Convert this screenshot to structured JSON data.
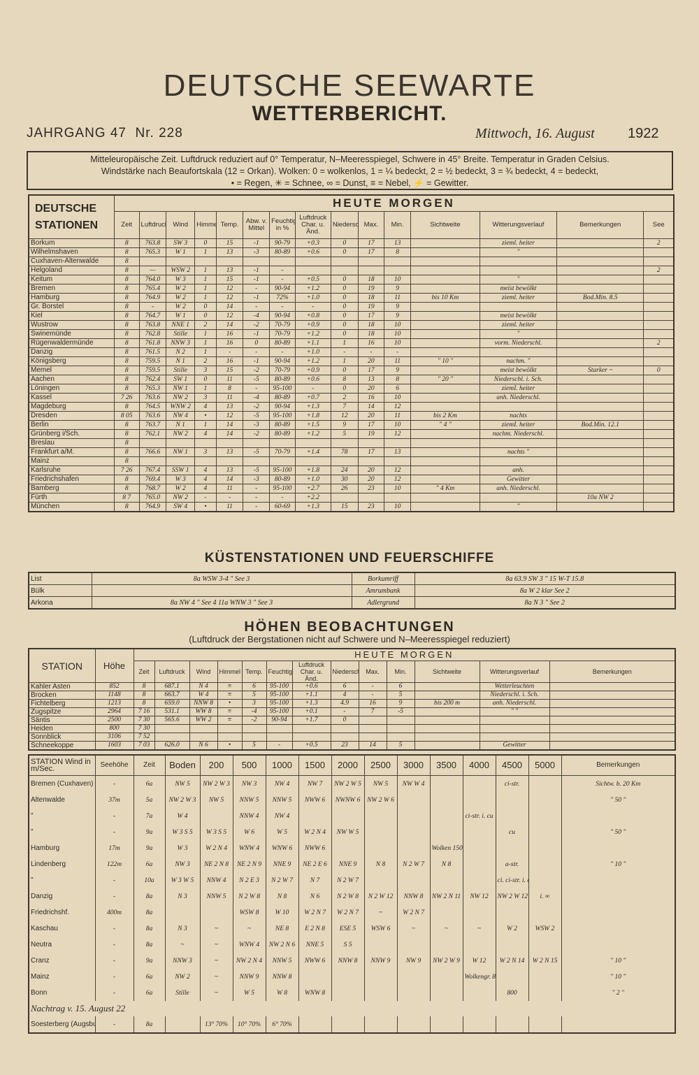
{
  "header": {
    "title": "DEUTSCHE SEEWARTE",
    "subtitle": "WETTERBERICHT.",
    "jahrgang": "JAHRGANG 47",
    "nr": "Nr. 228",
    "date": "Mittwoch, 16. August",
    "year": "1922"
  },
  "legend": [
    "Mitteleuropäische Zeit. Luftdruck reduziert auf 0° Temperatur, N–Meeresspiegel, Schwere in 45° Breite. Temperatur in Graden Celsius.",
    "Windstärke nach Beaufortskala (12 = Orkan). Wolken: 0 = wolkenlos, 1 = ¼ bedeckt, 2 = ½ bedeckt, 3 = ¾ bedeckt, 4 = bedeckt,",
    "• = Regen, ✳ = Schnee, ∞ = Dunst, ≡ = Nebel, ⚡ = Gewitter."
  ],
  "stations": {
    "title": "DEUTSCHE STATIONEN",
    "group": "HEUTE MORGEN",
    "columns": [
      "Zeit",
      "Luftdruck",
      "Wind",
      "Himmel",
      "Temp.",
      "Abw. v. Mittel",
      "Feuchtigkeit in %",
      "Luftdruck Char. u. Änd.",
      "Niederschlag",
      "Max.",
      "Min.",
      "Sichtweite",
      "Witterungsverlauf",
      "Bemerkungen",
      "See"
    ],
    "rows": [
      [
        "Borkum",
        "8",
        "763.8",
        "SW 3",
        "0",
        "15",
        "-1",
        "90-79",
        "+0.3",
        "0",
        "17",
        "13",
        null,
        "zieml. heiter",
        null,
        "2"
      ],
      [
        "Wilhelmshaven",
        "8",
        "765.3",
        "W 1",
        "1",
        "13",
        "-3",
        "80-89",
        "+0.6",
        "0",
        "17",
        "8",
        null,
        "\"",
        null,
        null
      ],
      [
        "Cuxhaven-Altenwalde",
        "8",
        null,
        null,
        null,
        null,
        null,
        null,
        null,
        null,
        null,
        null,
        null,
        null,
        null,
        null
      ],
      [
        "Helgoland",
        "8",
        "—",
        "WSW 2",
        "1",
        "13",
        "-1",
        "-",
        null,
        null,
        null,
        null,
        null,
        null,
        null,
        "2"
      ],
      [
        "Keitum",
        "8",
        "764.0",
        "W 3",
        "1",
        "15",
        "-1",
        "-",
        "+0.5",
        "0",
        "18",
        "10",
        null,
        "\"",
        null,
        null
      ],
      [
        "Bremen",
        "8",
        "765.4",
        "W 2",
        "1",
        "12",
        "-",
        "90-94",
        "+1.2",
        "0",
        "19",
        "9",
        null,
        "meist bewölkt",
        null,
        null
      ],
      [
        "Hamburg",
        "8",
        "764.9",
        "W 2",
        "1",
        "12",
        "-1",
        "72%",
        "+1.0",
        "0",
        "18",
        "11",
        "bis 10 Km",
        "zieml. heiter",
        "Bod.Min. 8.5",
        null
      ],
      [
        "Gr. Borstel",
        "8",
        "-",
        "W 2",
        "0",
        "14",
        "-",
        "-",
        "-",
        "0",
        "19",
        "9",
        null,
        null,
        null,
        null
      ],
      [
        "Kiel",
        "8",
        "764.7",
        "W 1",
        "0",
        "12",
        "-4",
        "90-94",
        "+0.8",
        "0",
        "17",
        "9",
        null,
        "meist bewölkt",
        null,
        null
      ],
      [
        "Wustrow",
        "8",
        "763.8",
        "NNE 1",
        "2",
        "14",
        "-2",
        "70-79",
        "+0.9",
        "0",
        "18",
        "10",
        null,
        "zieml. heiter",
        null,
        null
      ],
      [
        "Swinemünde",
        "8",
        "762.8",
        "Stille",
        "1",
        "16",
        "-1",
        "70-79",
        "+1.2",
        "0",
        "18",
        "10",
        null,
        "\"",
        null,
        null
      ],
      [
        "Rügenwaldermünde",
        "8",
        "761.8",
        "NNW 3",
        "1",
        "16",
        "0",
        "80-89",
        "+1.1",
        "1",
        "16",
        "10",
        null,
        "vorm. Niederschl.",
        null,
        "2"
      ],
      [
        "Danzig",
        "8",
        "761.5",
        "N 2",
        "1",
        "-",
        "-",
        "-",
        "+1.0",
        "-",
        "-",
        "-",
        null,
        null,
        null,
        null
      ],
      [
        "Königsberg",
        "8",
        "759.5",
        "N 1",
        "2",
        "16",
        "-1",
        "90-94",
        "+1.2",
        "1",
        "20",
        "11",
        "\" 10 \"",
        "nachm. \"",
        null,
        null
      ],
      [
        "Memel",
        "8",
        "759.5",
        "Stille",
        "3",
        "15",
        "-2",
        "70-79",
        "+0.9",
        "0",
        "17",
        "9",
        null,
        "meist bewölkt",
        "Starker ~",
        "0"
      ],
      [
        "Aachen",
        "8",
        "762.4",
        "SW 1",
        "0",
        "11",
        "-5",
        "80-89",
        "+0.6",
        "8",
        "13",
        "8",
        "\" 20 \"",
        "Niederschl. i. Sch.",
        null,
        null
      ],
      [
        "Löningen",
        "8",
        "765.3",
        "NW 1",
        "1",
        "8",
        "-",
        "95-100",
        "-",
        "0",
        "20",
        "6",
        null,
        "ziemI. heiter",
        null,
        null
      ],
      [
        "Kassel",
        "7 26",
        "763.6",
        "NW 2",
        "3",
        "11",
        "-4",
        "80-89",
        "+0.7",
        "2",
        "16",
        "10",
        null,
        "anh. Niederschl.",
        null,
        null
      ],
      [
        "Magdeburg",
        "8",
        "764.5",
        "WNW 2",
        "4",
        "13",
        "-2",
        "90-94",
        "+1.3",
        "7",
        "14",
        "12",
        null,
        null,
        null,
        null
      ],
      [
        "Dresden",
        "8 05",
        "763.6",
        "NW 4",
        "•",
        "12",
        "-5",
        "95-100",
        "+1.8",
        "12",
        "20",
        "11",
        "bis 2 Km",
        "nachts",
        null,
        null
      ],
      [
        "Berlin",
        "8",
        "763.7",
        "N 1",
        "1",
        "14",
        "-3",
        "80-89",
        "+1.5",
        "9",
        "17",
        "10",
        "\" 4 \"",
        "ziemI. heiter",
        "Bod.Min. 12.1",
        null
      ],
      [
        "Grünberg i/Sch.",
        "8",
        "762.1",
        "NW 2",
        "4",
        "14",
        "-2",
        "80-89",
        "+1.2",
        "5",
        "19",
        "12",
        null,
        "nachm. Niederschl.",
        null,
        null
      ],
      [
        "Breslau",
        "8",
        null,
        null,
        null,
        null,
        null,
        null,
        null,
        null,
        null,
        null,
        null,
        null,
        null,
        null
      ],
      [
        "Frankfurt a/M.",
        "8",
        "766.6",
        "NW 1",
        "3",
        "13",
        "-5",
        "70-79",
        "+1.4",
        "78",
        "17",
        "13",
        null,
        "nachts \"",
        null,
        null
      ],
      [
        "Mainz",
        "8",
        null,
        null,
        null,
        null,
        null,
        null,
        null,
        null,
        null,
        null,
        null,
        null,
        null,
        null
      ],
      [
        "Karlsruhe",
        "7 26",
        "767.4",
        "SSW 1",
        "4",
        "13",
        "-5",
        "95-100",
        "+1.8",
        "24",
        "20",
        "12",
        null,
        "anh.",
        null,
        null
      ],
      [
        "Friedrichshafen",
        "8",
        "769.4",
        "W 3",
        "4",
        "14",
        "-3",
        "80-89",
        "+1.0",
        "30",
        "20",
        "12",
        null,
        "Gewitter",
        null,
        null
      ],
      [
        "Bamberg",
        "8",
        "768.7",
        "W 2",
        "4",
        "11",
        "-",
        "95-100",
        "+2.7",
        "26",
        "23",
        "10",
        "\" 4 Km",
        "anh. Niederschl.",
        null,
        null
      ],
      [
        "Fürth",
        "8 7",
        "765.0",
        "NW 2",
        "-",
        "-",
        "-",
        "-",
        "+2.2",
        null,
        null,
        null,
        null,
        null,
        "10a NW 2",
        null
      ],
      [
        "München",
        "8",
        "764.9",
        "SW 4",
        "•",
        "11",
        "-",
        "60-69",
        "+1.3",
        "15",
        "23",
        "10",
        null,
        "\"",
        null,
        null
      ]
    ]
  },
  "coastal": {
    "title": "KÜSTENSTATIONEN UND FEUERSCHIFFE",
    "rows": [
      [
        "List",
        "8a WSW 3-4 \" See 3",
        "Borkumriff",
        "8a 63.9 SW 3 \" 15 W-T 15.8"
      ],
      [
        "Bülk",
        null,
        "Amrumbank",
        "8a W 2 klar See 2"
      ],
      [
        "Arkona",
        "8a NW 4 \" See 4  11a WNW 3 \" See 3",
        "Adlergrund",
        "8a N 3 \" See 2"
      ]
    ]
  },
  "mountain": {
    "title": "HÖHEN BEOBACHTUNGEN",
    "subtitle": "(Luftdruck der Bergstationen nicht auf Schwere und N–Meeresspiegel reduziert)",
    "station_label": "STATION",
    "height_label": "Höhe",
    "group": "HEUTE MORGEN",
    "columns": [
      "Zeit",
      "Luftdruck",
      "Wind",
      "Himmel",
      "Temp.",
      "Feuchtigkeit",
      "Luftdruck Char. u. Änd.",
      "Niederschlag",
      "Max.",
      "Min.",
      "Sichtweite",
      "Witterungsverlauf",
      "Bemerkungen"
    ],
    "rows": [
      [
        "Kahler Asten",
        "852",
        "8",
        "687.1",
        "N 4",
        "≡",
        "6",
        "95-100",
        "+0.6",
        "6",
        "-",
        "6",
        null,
        "Wetterleuchten",
        null
      ],
      [
        "Brocken",
        "1148",
        "8",
        "663.7",
        "W 4",
        "≡",
        "5",
        "95-100",
        "+1.1",
        "4",
        "-",
        "5",
        null,
        "Niederschl. i. Sch.",
        null
      ],
      [
        "Fichtelberg",
        "1213",
        "8",
        "659.0",
        "NNW 8",
        "•",
        "3",
        "95-100",
        "+1.3",
        "4.9",
        "16",
        "9",
        "bis 200 m",
        "anh. Niederschl.",
        null
      ],
      [
        "Zugspitze",
        "2964",
        "7 16",
        "531.1",
        "WW 8",
        "≡",
        "-4",
        "95-100",
        "+0.1",
        "-",
        "7",
        "-5",
        null,
        "\" \"",
        null
      ],
      [
        "Säntis",
        "2500",
        "7 30",
        "565.6",
        "WW 2",
        "≡",
        "-2",
        "90-94",
        "+1.7",
        "0",
        null,
        null,
        null,
        null,
        null
      ],
      [
        "Heiden",
        "800",
        "7 30",
        null,
        null,
        null,
        null,
        null,
        null,
        null,
        null,
        null,
        null,
        null,
        null
      ],
      [
        "Sonnblick",
        "3106",
        "7 52",
        null,
        null,
        null,
        null,
        null,
        null,
        null,
        null,
        null,
        null,
        null,
        null
      ],
      [
        "Schneekoppe",
        "1603",
        "7 03",
        "626.0",
        "N 6",
        "•",
        "5",
        "-",
        "+0.5",
        "23",
        "14",
        "5",
        null,
        "Gewitter",
        null
      ]
    ]
  },
  "upper_air": {
    "station_label": "STATION Wind in m/Sec.",
    "columns": [
      "Seehöhe",
      "Zeit",
      "Boden",
      "200",
      "500",
      "1000",
      "1500",
      "2000",
      "2500",
      "3000",
      "3500",
      "4000",
      "4500",
      "5000",
      "Bemerkungen"
    ],
    "rows": [
      [
        "Bremen (Cuxhaven)",
        "-",
        "6a",
        "NW 5",
        "NW 2 W 3",
        "NW 3",
        "NW 4",
        "NW 7",
        "NW 2 W 5",
        "NW 5",
        "NW W 4",
        null,
        null,
        "ci-str.",
        null,
        "Sichtw. b. 20 Km"
      ],
      [
        "Altenwalde",
        "37m",
        "5a",
        "NW 2 W 3",
        "NW 5",
        "NNW 5",
        "NNW 5",
        "NWW 6",
        "NWNW 6",
        "NW 2 W 6",
        null,
        null,
        null,
        null,
        null,
        "\" 50 \""
      ],
      [
        "\"",
        "-",
        "7a",
        "W 4",
        null,
        "NNW 4",
        "NW 4",
        null,
        null,
        null,
        null,
        null,
        "ci-str. i. cu",
        null,
        null,
        null
      ],
      [
        "\"",
        "-",
        "9a",
        "W 3 S 5",
        "W 3 S 5",
        "W 6",
        "W 5",
        "W 2 N 4",
        "NW W 5",
        null,
        null,
        null,
        null,
        "cu",
        null,
        "\" 50 \""
      ],
      [
        "Hamburg",
        "17m",
        "9a",
        "W 3",
        "W 2 N 4",
        "WNW 4",
        "WNW 6",
        "NWW 6",
        null,
        null,
        null,
        "Wolken 1500 m",
        null,
        null,
        null,
        null
      ],
      [
        "Lindenberg",
        "122m",
        "6a",
        "NW 3",
        "NE 2 N 8",
        "NE 2 N 9",
        "NNE 9",
        "NE 2 E 6",
        "NNE 9",
        "N 8",
        "N 2 W 7",
        "N 8",
        null,
        "a-str.",
        null,
        "\" 10 \""
      ],
      [
        "\"",
        "-",
        "10a",
        "W 3 W 5",
        "NNW 4",
        "N 2 E 3",
        "N 2 W 7",
        "N 7",
        "N 2 W 7",
        null,
        null,
        null,
        null,
        "ci. ci-str. i. cu.",
        null,
        null
      ],
      [
        "Danzig",
        "-",
        "8a",
        "N 3",
        "NNW 5",
        "N 2 W 8",
        "N 8",
        "N 6",
        "N 2 W 8",
        "N 2 W 12",
        "NNW 8",
        "NW 2 N 11",
        "NW 12",
        "NW 2 W 12",
        "i. ∞",
        null
      ],
      [
        "Friedrichshf.",
        "400m",
        "8a",
        null,
        null,
        "WSW 8",
        "W 10",
        "W 2 N 7",
        "W 2 N 7",
        "~",
        "W 2 N 7",
        null,
        null,
        null,
        null,
        null
      ],
      [
        "Kaschau",
        "-",
        "8a",
        "N 3",
        "~",
        "~",
        "NE 8",
        "E 2 N 8",
        "ESE 5",
        "WSW 6",
        "~",
        "~",
        "~",
        "W 2",
        "WSW 2",
        null
      ],
      [
        "Neutra",
        "-",
        "8a",
        "~",
        "~",
        "WNW 4",
        "NW 2 N 6",
        "NNE 5",
        "S 5",
        null,
        null,
        null,
        null,
        null,
        null,
        null
      ],
      [
        "Cranz",
        "-",
        "9a",
        "NNW 3",
        "~",
        "NW 2 N 4",
        "NNW 5",
        "NWW 6",
        "NNW 8",
        "NNW 9",
        "NW 9",
        "NW 2 W 9",
        "W 12",
        "W 2 N 14",
        "W 2 N 15",
        "\" 10 \""
      ],
      [
        "Mainz",
        "-",
        "6a",
        "NW 2",
        "~",
        "NNW 9",
        "NNW 8",
        null,
        null,
        null,
        null,
        null,
        "Wolkengr. 800 m",
        null,
        null,
        "\" 10 \""
      ],
      [
        "Bonn",
        "-",
        "6a",
        "Stille",
        "~",
        "W 5",
        "W 8",
        "WNW 8",
        null,
        null,
        null,
        null,
        null,
        "800",
        null,
        "\" 2 \""
      ]
    ],
    "addendum": "Nachtrag v. 15. August 22",
    "addendum_row": [
      "Soesterberg (Augsburg)",
      "-",
      "8a",
      null,
      "13° 70%",
      "10° 70%",
      "6° 70%",
      null,
      null,
      null,
      null,
      null,
      null,
      null,
      null,
      null
    ]
  }
}
